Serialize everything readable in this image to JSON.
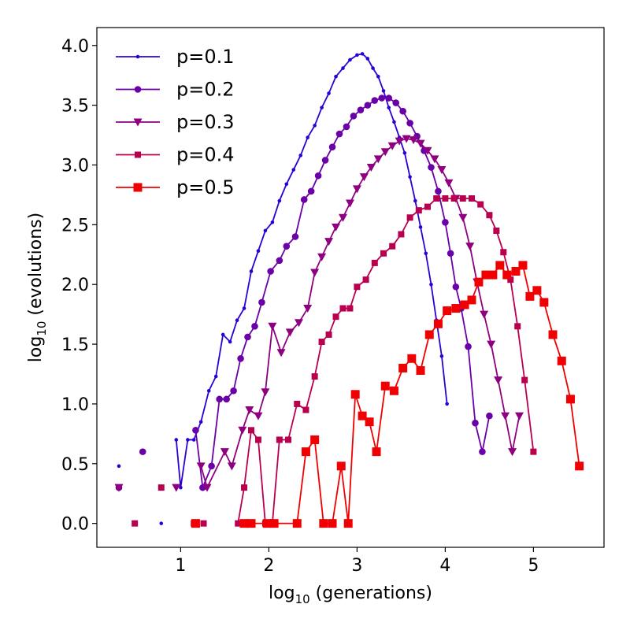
{
  "chart_data": {
    "type": "line",
    "xlabel": {
      "base": "log",
      "sub": "10",
      "rest": " (generations)"
    },
    "ylabel": {
      "base": "log",
      "sub": "10",
      "rest": " (evolutions)"
    },
    "xlim": [
      0.05,
      5.8
    ],
    "ylim": [
      -0.2,
      4.15
    ],
    "xticks": [
      1,
      2,
      3,
      4,
      5
    ],
    "xtick_labels": [
      "1",
      "2",
      "3",
      "4",
      "5"
    ],
    "yticks": [
      0.0,
      0.5,
      1.0,
      1.5,
      2.0,
      2.5,
      3.0,
      3.5,
      4.0
    ],
    "ytick_labels": [
      "0.0",
      "0.5",
      "1.0",
      "1.5",
      "2.0",
      "2.5",
      "3.0",
      "3.5",
      "4.0"
    ],
    "grid": false,
    "legend_position": "top-left",
    "series": [
      {
        "name": "p=0.1",
        "color": "#2b00d4",
        "marker": "dot",
        "isolated_points": [
          [
            0.3,
            0.48
          ],
          [
            0.78,
            0.0
          ]
        ],
        "values": [
          [
            0.95,
            0.7
          ],
          [
            1.0,
            0.3
          ],
          [
            1.08,
            0.7
          ],
          [
            1.15,
            0.7
          ],
          [
            1.23,
            0.85
          ],
          [
            1.32,
            1.11
          ],
          [
            1.4,
            1.23
          ],
          [
            1.48,
            1.58
          ],
          [
            1.56,
            1.52
          ],
          [
            1.64,
            1.7
          ],
          [
            1.72,
            1.8
          ],
          [
            1.8,
            2.11
          ],
          [
            1.88,
            2.28
          ],
          [
            1.96,
            2.45
          ],
          [
            2.04,
            2.52
          ],
          [
            2.12,
            2.7
          ],
          [
            2.2,
            2.84
          ],
          [
            2.28,
            2.96
          ],
          [
            2.36,
            3.08
          ],
          [
            2.44,
            3.23
          ],
          [
            2.52,
            3.33
          ],
          [
            2.6,
            3.48
          ],
          [
            2.68,
            3.6
          ],
          [
            2.76,
            3.74
          ],
          [
            2.84,
            3.81
          ],
          [
            2.92,
            3.88
          ],
          [
            3.0,
            3.92
          ],
          [
            3.06,
            3.93
          ],
          [
            3.12,
            3.89
          ],
          [
            3.18,
            3.81
          ],
          [
            3.24,
            3.74
          ],
          [
            3.3,
            3.62
          ],
          [
            3.36,
            3.48
          ],
          [
            3.42,
            3.36
          ],
          [
            3.48,
            3.23
          ],
          [
            3.54,
            3.1
          ],
          [
            3.6,
            2.9
          ],
          [
            3.66,
            2.7
          ],
          [
            3.72,
            2.48
          ],
          [
            3.78,
            2.26
          ],
          [
            3.84,
            2.0
          ],
          [
            3.9,
            1.7
          ],
          [
            3.96,
            1.4
          ],
          [
            4.02,
            1.0
          ]
        ]
      },
      {
        "name": "p=0.2",
        "color": "#6a00a8",
        "marker": "circle",
        "isolated_points": [
          [
            0.3,
            0.3
          ],
          [
            0.57,
            0.6
          ]
        ],
        "values": [
          [
            1.17,
            0.78
          ],
          [
            1.25,
            0.3
          ],
          [
            1.35,
            0.48
          ],
          [
            1.44,
            1.04
          ],
          [
            1.52,
            1.04
          ],
          [
            1.6,
            1.11
          ],
          [
            1.68,
            1.38
          ],
          [
            1.76,
            1.56
          ],
          [
            1.84,
            1.65
          ],
          [
            1.92,
            1.85
          ],
          [
            2.02,
            2.11
          ],
          [
            2.12,
            2.2
          ],
          [
            2.2,
            2.32
          ],
          [
            2.3,
            2.4
          ],
          [
            2.4,
            2.71
          ],
          [
            2.48,
            2.78
          ],
          [
            2.56,
            2.91
          ],
          [
            2.64,
            3.04
          ],
          [
            2.72,
            3.15
          ],
          [
            2.8,
            3.26
          ],
          [
            2.88,
            3.32
          ],
          [
            2.96,
            3.41
          ],
          [
            3.04,
            3.46
          ],
          [
            3.12,
            3.5
          ],
          [
            3.2,
            3.54
          ],
          [
            3.28,
            3.56
          ],
          [
            3.36,
            3.56
          ],
          [
            3.44,
            3.52
          ],
          [
            3.52,
            3.45
          ],
          [
            3.6,
            3.35
          ],
          [
            3.68,
            3.24
          ],
          [
            3.76,
            3.12
          ],
          [
            3.84,
            2.98
          ],
          [
            3.92,
            2.78
          ],
          [
            4.0,
            2.52
          ],
          [
            4.06,
            2.26
          ],
          [
            4.12,
            1.98
          ],
          [
            4.18,
            1.8
          ],
          [
            4.26,
            1.48
          ],
          [
            4.34,
            0.84
          ],
          [
            4.42,
            0.6
          ],
          [
            4.5,
            0.9
          ]
        ]
      },
      {
        "name": "p=0.3",
        "color": "#8f0080",
        "marker": "triangle-down",
        "isolated_points": [
          [
            0.3,
            0.3
          ],
          [
            0.95,
            0.3
          ]
        ],
        "values": [
          [
            1.23,
            0.48
          ],
          [
            1.3,
            0.3
          ],
          [
            1.5,
            0.6
          ],
          [
            1.58,
            0.48
          ],
          [
            1.7,
            0.78
          ],
          [
            1.78,
            0.95
          ],
          [
            1.88,
            0.9
          ],
          [
            1.96,
            1.1
          ],
          [
            2.04,
            1.65
          ],
          [
            2.14,
            1.43
          ],
          [
            2.24,
            1.6
          ],
          [
            2.34,
            1.68
          ],
          [
            2.44,
            1.8
          ],
          [
            2.52,
            2.1
          ],
          [
            2.6,
            2.23
          ],
          [
            2.68,
            2.36
          ],
          [
            2.76,
            2.48
          ],
          [
            2.84,
            2.56
          ],
          [
            2.92,
            2.68
          ],
          [
            3.0,
            2.8
          ],
          [
            3.08,
            2.9
          ],
          [
            3.16,
            2.98
          ],
          [
            3.24,
            3.05
          ],
          [
            3.32,
            3.11
          ],
          [
            3.4,
            3.16
          ],
          [
            3.48,
            3.2
          ],
          [
            3.56,
            3.22
          ],
          [
            3.64,
            3.21
          ],
          [
            3.72,
            3.18
          ],
          [
            3.8,
            3.12
          ],
          [
            3.88,
            3.05
          ],
          [
            3.96,
            2.96
          ],
          [
            4.04,
            2.85
          ],
          [
            4.12,
            2.72
          ],
          [
            4.2,
            2.56
          ],
          [
            4.28,
            2.32
          ],
          [
            4.36,
            2.02
          ],
          [
            4.44,
            1.75
          ],
          [
            4.52,
            1.5
          ],
          [
            4.6,
            1.2
          ],
          [
            4.68,
            0.9
          ],
          [
            4.76,
            0.6
          ],
          [
            4.84,
            0.9
          ]
        ]
      },
      {
        "name": "p=0.4",
        "color": "#b8004f",
        "marker": "square-small",
        "isolated_points": [
          [
            0.48,
            0.0
          ],
          [
            0.78,
            0.3
          ],
          [
            1.15,
            0.0
          ],
          [
            1.26,
            0.0
          ]
        ],
        "values": [
          [
            1.65,
            0.0
          ],
          [
            1.72,
            0.3
          ],
          [
            1.8,
            0.78
          ],
          [
            1.88,
            0.7
          ],
          [
            1.96,
            0.0
          ],
          [
            2.04,
            0.0
          ],
          [
            2.12,
            0.7
          ],
          [
            2.22,
            0.7
          ],
          [
            2.32,
            1.0
          ],
          [
            2.42,
            0.95
          ],
          [
            2.52,
            1.23
          ],
          [
            2.6,
            1.52
          ],
          [
            2.68,
            1.58
          ],
          [
            2.76,
            1.73
          ],
          [
            2.84,
            1.8
          ],
          [
            2.92,
            1.8
          ],
          [
            3.0,
            1.98
          ],
          [
            3.1,
            2.04
          ],
          [
            3.2,
            2.18
          ],
          [
            3.3,
            2.26
          ],
          [
            3.4,
            2.32
          ],
          [
            3.5,
            2.42
          ],
          [
            3.6,
            2.56
          ],
          [
            3.7,
            2.62
          ],
          [
            3.8,
            2.65
          ],
          [
            3.9,
            2.72
          ],
          [
            4.0,
            2.72
          ],
          [
            4.1,
            2.72
          ],
          [
            4.2,
            2.72
          ],
          [
            4.3,
            2.72
          ],
          [
            4.4,
            2.67
          ],
          [
            4.5,
            2.58
          ],
          [
            4.58,
            2.45
          ],
          [
            4.66,
            2.27
          ],
          [
            4.74,
            2.04
          ],
          [
            4.82,
            1.65
          ],
          [
            4.9,
            1.2
          ],
          [
            5.0,
            0.6
          ]
        ]
      },
      {
        "name": "p=0.5",
        "color": "#f00000",
        "marker": "square",
        "isolated_points": [
          [
            1.17,
            0.0
          ]
        ],
        "values": [
          [
            1.72,
            0.0
          ],
          [
            1.8,
            0.0
          ],
          [
            1.98,
            0.0
          ],
          [
            2.06,
            0.0
          ],
          [
            2.32,
            0.0
          ],
          [
            2.42,
            0.6
          ],
          [
            2.52,
            0.7
          ],
          [
            2.62,
            0.0
          ],
          [
            2.72,
            0.0
          ],
          [
            2.82,
            0.48
          ],
          [
            2.9,
            0.0
          ],
          [
            2.98,
            1.08
          ],
          [
            3.06,
            0.9
          ],
          [
            3.14,
            0.85
          ],
          [
            3.22,
            0.6
          ],
          [
            3.32,
            1.15
          ],
          [
            3.42,
            1.11
          ],
          [
            3.52,
            1.3
          ],
          [
            3.62,
            1.38
          ],
          [
            3.72,
            1.28
          ],
          [
            3.82,
            1.58
          ],
          [
            3.92,
            1.67
          ],
          [
            4.02,
            1.78
          ],
          [
            4.12,
            1.8
          ],
          [
            4.22,
            1.83
          ],
          [
            4.3,
            1.87
          ],
          [
            4.38,
            2.02
          ],
          [
            4.46,
            2.08
          ],
          [
            4.54,
            2.08
          ],
          [
            4.62,
            2.16
          ],
          [
            4.7,
            2.08
          ],
          [
            4.8,
            2.11
          ],
          [
            4.88,
            2.16
          ],
          [
            4.96,
            1.9
          ],
          [
            5.04,
            1.95
          ],
          [
            5.12,
            1.85
          ],
          [
            5.22,
            1.58
          ],
          [
            5.32,
            1.36
          ],
          [
            5.42,
            1.04
          ],
          [
            5.52,
            0.48
          ]
        ]
      }
    ]
  }
}
